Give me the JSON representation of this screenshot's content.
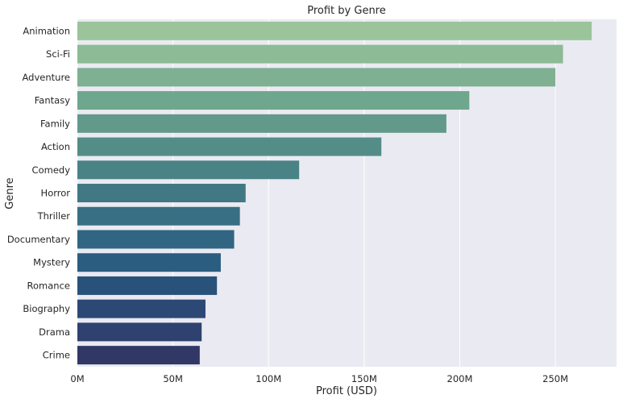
{
  "chart_data": {
    "type": "bar",
    "orientation": "horizontal",
    "title": "Profit by Genre",
    "xlabel": "Profit (USD)",
    "ylabel": "Genre",
    "xlim": [
      0,
      282
    ],
    "x_unit": "M USD",
    "xticks": [
      0,
      50,
      100,
      150,
      200,
      250
    ],
    "xtick_labels": [
      "0M",
      "50M",
      "100M",
      "150M",
      "200M",
      "250M"
    ],
    "grid": true,
    "categories": [
      "Animation",
      "Sci-Fi",
      "Adventure",
      "Fantasy",
      "Family",
      "Action",
      "Comedy",
      "Horror",
      "Thriller",
      "Documentary",
      "Mystery",
      "Romance",
      "Biography",
      "Drama",
      "Crime"
    ],
    "values": [
      269,
      254,
      250,
      205,
      193,
      159,
      116,
      88,
      85,
      82,
      75,
      73,
      67,
      65,
      64
    ],
    "colors": [
      "#9bc49b",
      "#8cbb95",
      "#7fb091",
      "#6fa78e",
      "#62998b",
      "#548d88",
      "#4a8386",
      "#417884",
      "#396f83",
      "#306682",
      "#2a5d80",
      "#285279",
      "#2c4976",
      "#2f416f",
      "#313866"
    ],
    "background": "#eaeaf2"
  }
}
